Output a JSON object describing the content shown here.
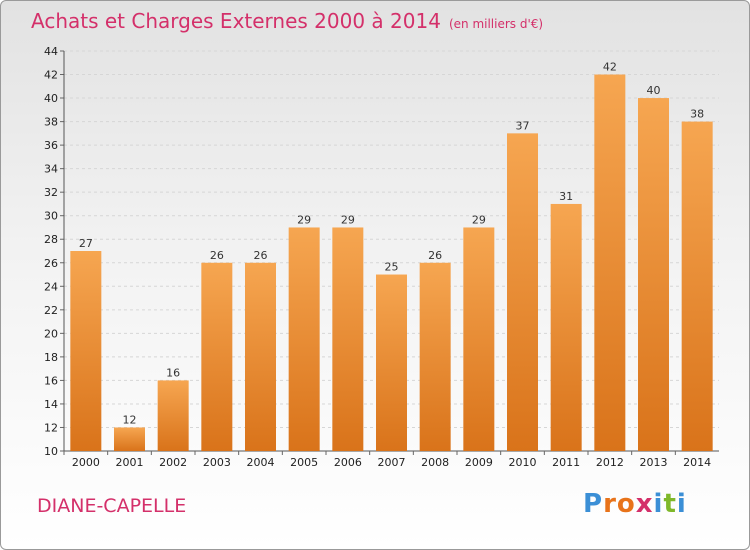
{
  "header": {
    "title": "Achats et Charges Externes 2000 à 2014",
    "unit": "(en milliers d'€)"
  },
  "footer": {
    "commune": "DIANE-CAPELLE",
    "logo": "Proxiti"
  },
  "colors": {
    "title": "#d4306a",
    "bar_top": "#f6a651",
    "bar_bottom": "#d9731a"
  },
  "chart_data": {
    "type": "bar",
    "title": "Achats et Charges Externes 2000 à 2014",
    "subtitle": "(en milliers d'€)",
    "xlabel": "",
    "ylabel": "",
    "categories": [
      "2000",
      "2001",
      "2002",
      "2003",
      "2004",
      "2005",
      "2006",
      "2007",
      "2008",
      "2009",
      "2010",
      "2011",
      "2012",
      "2013",
      "2014"
    ],
    "values": [
      27,
      12,
      16,
      26,
      26,
      29,
      29,
      25,
      26,
      29,
      37,
      31,
      42,
      40,
      38
    ],
    "ylim": [
      10,
      44
    ],
    "yticks": [
      10,
      12,
      14,
      16,
      18,
      20,
      22,
      24,
      26,
      28,
      30,
      32,
      34,
      36,
      38,
      40,
      42,
      44
    ],
    "grid": true
  }
}
